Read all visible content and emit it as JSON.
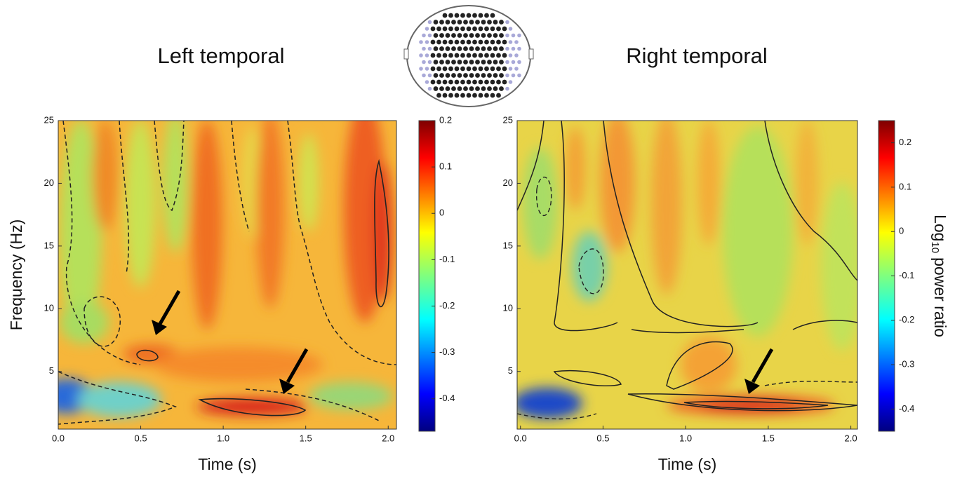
{
  "chart_data": [
    {
      "type": "heatmap",
      "title": "Left temporal",
      "xlabel": "Time (s)",
      "ylabel": "Frequency (Hz)",
      "xlim": [
        0,
        2.05
      ],
      "ylim": [
        0.4,
        25
      ],
      "xticks": [
        {
          "value": 0,
          "label": "0.0"
        },
        0.5,
        {
          "value": 1,
          "label": "1.0"
        },
        1.5,
        {
          "value": 2,
          "label": "2.0"
        }
      ],
      "yticks": [
        5,
        10,
        15,
        20,
        25
      ],
      "clim": [
        -0.47,
        0.2
      ],
      "cticks": [
        0.2,
        0.1,
        0,
        -0.1,
        -0.2,
        -0.3,
        -0.4
      ]
    },
    {
      "type": "heatmap",
      "title": "Right temporal",
      "xlabel": "Time (s)",
      "xlim": [
        -0.02,
        2.04
      ],
      "ylim": [
        0.4,
        25
      ],
      "xticks": [
        {
          "value": 0,
          "label": "0.0"
        },
        0.5,
        {
          "value": 1,
          "label": "1.0"
        },
        1.5,
        {
          "value": 2,
          "label": "2.0"
        }
      ],
      "yticks": [
        5,
        10,
        15,
        20,
        25
      ],
      "clim": [
        -0.45,
        0.25
      ],
      "cticks": [
        0.2,
        0.1,
        0,
        -0.1,
        -0.2,
        -0.3,
        -0.4
      ],
      "colorbar_label": {
        "text": "Log",
        "subscript": "10",
        "suffix": "power ratio"
      }
    }
  ]
}
